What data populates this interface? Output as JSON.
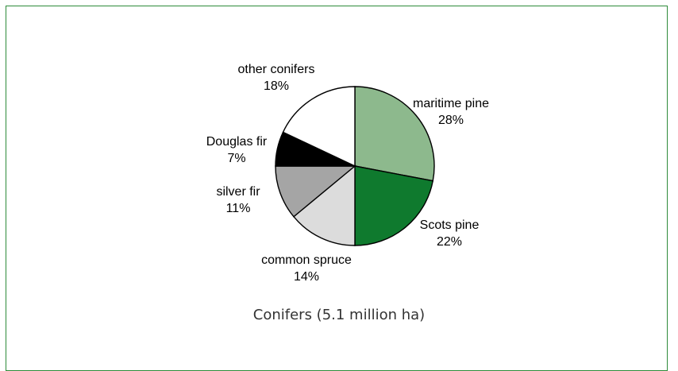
{
  "caption": "Conifers (5.1 million ha)",
  "chart_data": {
    "type": "pie",
    "title": "Conifers (5.1 million ha)",
    "slices": [
      {
        "label": "maritime pine",
        "percent_label": "28%",
        "value": 28,
        "color": "#8db98d"
      },
      {
        "label": "Scots pine",
        "percent_label": "22%",
        "value": 22,
        "color": "#0f7a2e"
      },
      {
        "label": "common spruce",
        "percent_label": "14%",
        "value": 14,
        "color": "#dcdcdc"
      },
      {
        "label": "silver fir",
        "percent_label": "11%",
        "value": 11,
        "color": "#a5a5a5"
      },
      {
        "label": "Douglas fir",
        "percent_label": "7%",
        "value": 7,
        "color": "#000000"
      },
      {
        "label": "other conifers",
        "percent_label": "18%",
        "value": 18,
        "color": "#ffffff"
      }
    ]
  }
}
